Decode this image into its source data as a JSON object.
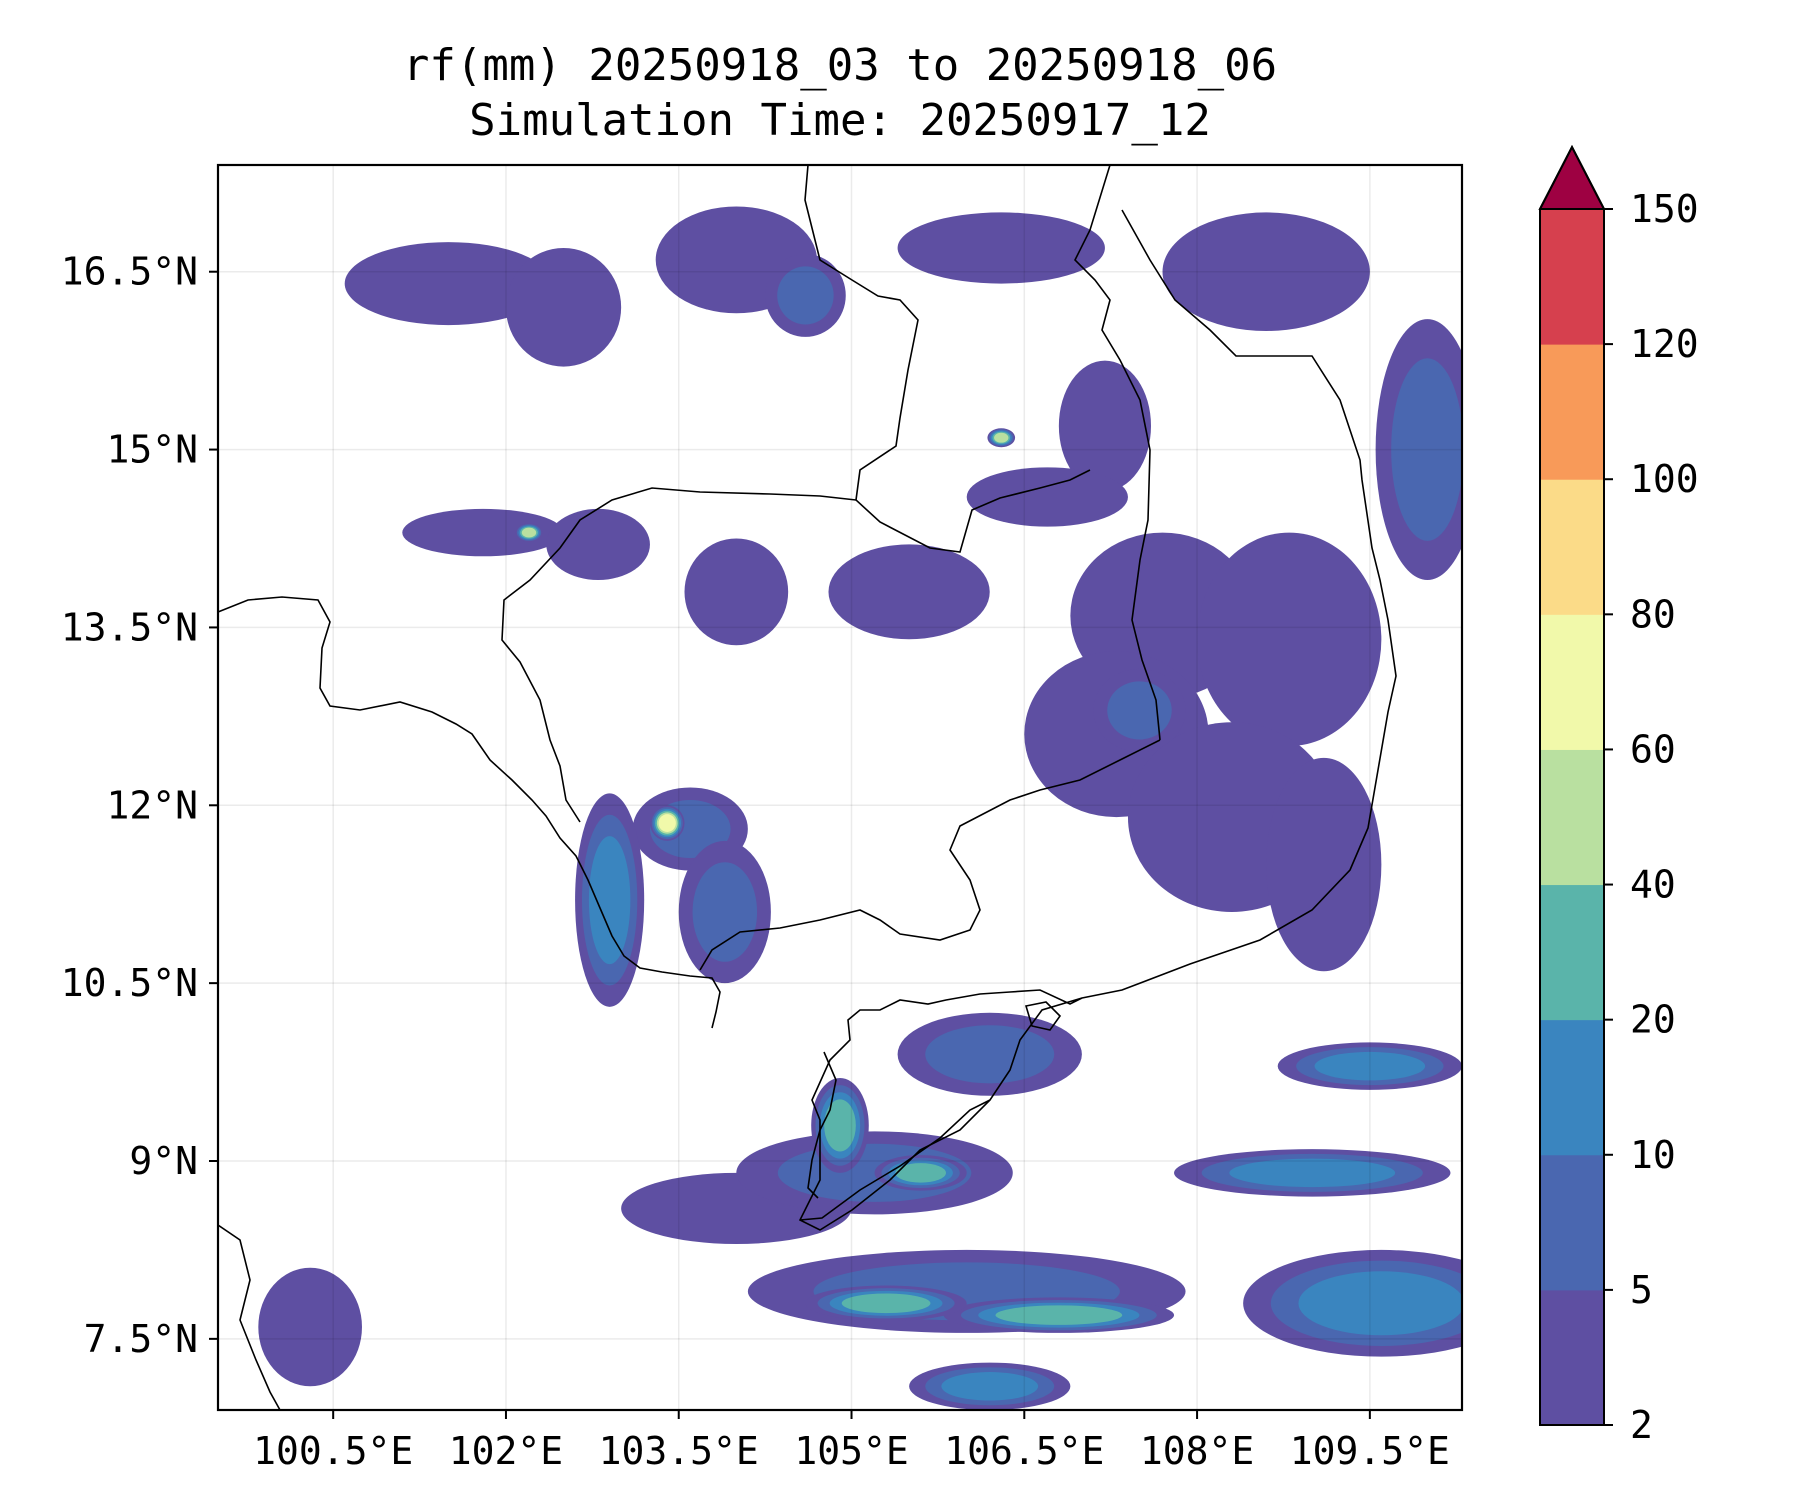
{
  "title": {
    "line1": "rf(mm) 20250918_03 to 20250918_06",
    "line2": "Simulation Time: 20250917_12"
  },
  "map": {
    "type": "contourf",
    "variable": "rf(mm)",
    "lon_range": [
      99.5,
      110.3
    ],
    "lat_range": [
      6.9,
      17.4
    ],
    "lon_ticks": [
      {
        "value": 100.5,
        "label": "100.5°E"
      },
      {
        "value": 102,
        "label": "102°E"
      },
      {
        "value": 103.5,
        "label": "103.5°E"
      },
      {
        "value": 105,
        "label": "105°E"
      },
      {
        "value": 106.5,
        "label": "106.5°E"
      },
      {
        "value": 108,
        "label": "108°E"
      },
      {
        "value": 109.5,
        "label": "109.5°E"
      }
    ],
    "lat_ticks": [
      {
        "value": 16.5,
        "label": "16.5°N"
      },
      {
        "value": 15,
        "label": "15°N"
      },
      {
        "value": 13.5,
        "label": "13.5°N"
      },
      {
        "value": 12,
        "label": "12°N"
      },
      {
        "value": 10.5,
        "label": "10.5°N"
      },
      {
        "value": 9,
        "label": "9°N"
      },
      {
        "value": 7.5,
        "label": "7.5°N"
      }
    ],
    "grid": true
  },
  "colorbar": {
    "extend": "max",
    "levels": [
      2,
      5,
      10,
      20,
      40,
      60,
      80,
      100,
      120,
      150
    ],
    "labels": [
      "2",
      "5",
      "10",
      "20",
      "40",
      "60",
      "80",
      "100",
      "120",
      "150"
    ],
    "colors": [
      "#5e4fa2",
      "#4a67b0",
      "#3a85bf",
      "#5ab4aa",
      "#b9e0a0",
      "#f1f9aa",
      "#fbdb88",
      "#f89a59",
      "#d6404e"
    ],
    "extend_color": "#9e0142"
  },
  "chart_data": {
    "type": "heatmap",
    "title": "rf(mm) 20250918_03 to 20250918_06",
    "subtitle": "Simulation Time: 20250917_12",
    "xlim": [
      99.5,
      110.3
    ],
    "ylim": [
      6.9,
      17.4
    ],
    "rain_cells": [
      {
        "lon": 101.5,
        "lat": 16.4,
        "rx": 0.9,
        "ry": 0.35,
        "level": 0
      },
      {
        "lon": 102.5,
        "lat": 16.2,
        "rx": 0.5,
        "ry": 0.5,
        "level": 0
      },
      {
        "lon": 104.0,
        "lat": 16.6,
        "rx": 0.7,
        "ry": 0.45,
        "level": 0
      },
      {
        "lon": 104.6,
        "lat": 16.3,
        "rx": 0.35,
        "ry": 0.35,
        "level": 1
      },
      {
        "lon": 106.3,
        "lat": 16.7,
        "rx": 0.9,
        "ry": 0.3,
        "level": 0
      },
      {
        "lon": 108.6,
        "lat": 16.5,
        "rx": 0.9,
        "ry": 0.5,
        "level": 0
      },
      {
        "lon": 110.0,
        "lat": 15.0,
        "rx": 0.45,
        "ry": 1.1,
        "level": 1
      },
      {
        "lon": 107.2,
        "lat": 15.2,
        "rx": 0.4,
        "ry": 0.55,
        "level": 0
      },
      {
        "lon": 106.7,
        "lat": 14.6,
        "rx": 0.7,
        "ry": 0.25,
        "level": 0
      },
      {
        "lon": 101.8,
        "lat": 14.3,
        "rx": 0.7,
        "ry": 0.2,
        "level": 0
      },
      {
        "lon": 102.8,
        "lat": 14.2,
        "rx": 0.45,
        "ry": 0.3,
        "level": 0
      },
      {
        "lon": 104.0,
        "lat": 13.8,
        "rx": 0.45,
        "ry": 0.45,
        "level": 0
      },
      {
        "lon": 105.5,
        "lat": 13.8,
        "rx": 0.7,
        "ry": 0.4,
        "level": 0
      },
      {
        "lon": 107.7,
        "lat": 13.6,
        "rx": 0.8,
        "ry": 0.7,
        "level": 0
      },
      {
        "lon": 108.8,
        "lat": 13.4,
        "rx": 0.8,
        "ry": 0.9,
        "level": 0
      },
      {
        "lon": 107.3,
        "lat": 12.6,
        "rx": 0.8,
        "ry": 0.7,
        "level": 0
      },
      {
        "lon": 107.5,
        "lat": 12.8,
        "rx": 0.4,
        "ry": 0.35,
        "level": 1
      },
      {
        "lon": 108.3,
        "lat": 11.9,
        "rx": 0.9,
        "ry": 0.8,
        "level": 0
      },
      {
        "lon": 109.1,
        "lat": 11.5,
        "rx": 0.5,
        "ry": 0.9,
        "level": 0
      },
      {
        "lon": 103.6,
        "lat": 11.8,
        "rx": 0.5,
        "ry": 0.35,
        "level": 1
      },
      {
        "lon": 102.9,
        "lat": 11.2,
        "rx": 0.3,
        "ry": 0.9,
        "level": 2
      },
      {
        "lon": 103.9,
        "lat": 11.1,
        "rx": 0.4,
        "ry": 0.6,
        "level": 1
      },
      {
        "lon": 106.2,
        "lat": 9.9,
        "rx": 0.8,
        "ry": 0.35,
        "level": 1
      },
      {
        "lon": 109.5,
        "lat": 9.8,
        "rx": 0.8,
        "ry": 0.2,
        "level": 2
      },
      {
        "lon": 109.0,
        "lat": 8.9,
        "rx": 1.2,
        "ry": 0.2,
        "level": 2
      },
      {
        "lon": 109.6,
        "lat": 7.8,
        "rx": 1.2,
        "ry": 0.45,
        "level": 2
      },
      {
        "lon": 105.2,
        "lat": 8.9,
        "rx": 1.2,
        "ry": 0.35,
        "level": 1
      },
      {
        "lon": 104.0,
        "lat": 8.6,
        "rx": 1.0,
        "ry": 0.3,
        "level": 0
      },
      {
        "lon": 106.0,
        "lat": 7.9,
        "rx": 1.9,
        "ry": 0.35,
        "level": 1
      },
      {
        "lon": 106.8,
        "lat": 7.7,
        "rx": 1.0,
        "ry": 0.15,
        "level": 3
      },
      {
        "lon": 105.3,
        "lat": 7.8,
        "rx": 0.7,
        "ry": 0.15,
        "level": 3
      },
      {
        "lon": 104.9,
        "lat": 9.3,
        "rx": 0.25,
        "ry": 0.4,
        "level": 3
      },
      {
        "lon": 105.6,
        "lat": 8.9,
        "rx": 0.4,
        "ry": 0.15,
        "level": 3
      },
      {
        "lon": 106.2,
        "lat": 7.1,
        "rx": 0.7,
        "ry": 0.2,
        "level": 2
      },
      {
        "lon": 100.3,
        "lat": 7.6,
        "rx": 0.45,
        "ry": 0.5,
        "level": 0
      },
      {
        "lon": 103.4,
        "lat": 11.85,
        "rx": 0.15,
        "ry": 0.15,
        "level": 5
      },
      {
        "lon": 102.2,
        "lat": 14.3,
        "rx": 0.12,
        "ry": 0.08,
        "level": 4
      },
      {
        "lon": 106.3,
        "lat": 15.1,
        "rx": 0.12,
        "ry": 0.08,
        "level": 4
      }
    ]
  }
}
